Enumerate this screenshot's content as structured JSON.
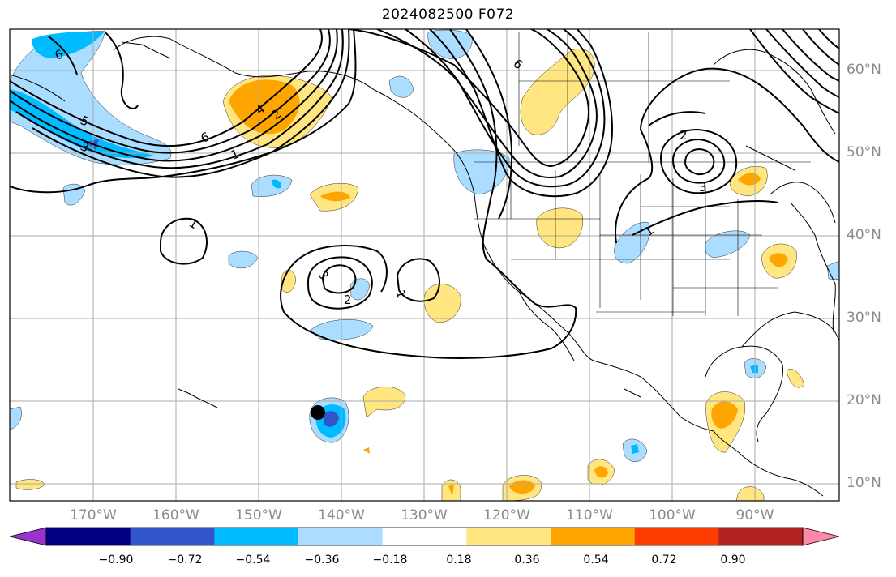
{
  "title": "2024082500 F072",
  "lon_labels": [
    "170°W",
    "160°W",
    "150°W",
    "140°W",
    "130°W",
    "120°W",
    "110°W",
    "100°W",
    "90°W"
  ],
  "lat_labels": [
    "60°N",
    "50°N",
    "40°N",
    "30°N",
    "20°N",
    "10°N"
  ],
  "colorbar": {
    "ticks": [
      "−0.90",
      "−0.72",
      "−0.54",
      "−0.36",
      "−0.18",
      "0.18",
      "0.36",
      "0.54",
      "0.72",
      "0.90"
    ],
    "colors": [
      "#9933cc",
      "#000080",
      "#3355cc",
      "#00bbff",
      "#aaddff",
      "#ffffff",
      "#ffe680",
      "#ffa500",
      "#ff3c00",
      "#b22222",
      "#ff88aa"
    ]
  },
  "contour_labels": [
    "6",
    "5",
    "3",
    "6",
    "4",
    "2",
    "1",
    "6",
    "2",
    "3",
    "1",
    "3",
    "2",
    "1",
    "1"
  ],
  "palette": {
    "light_blue": "#aaddff",
    "blue": "#00bbff",
    "mid_blue": "#3355cc",
    "yellow": "#ffe680",
    "orange": "#ffa500"
  }
}
